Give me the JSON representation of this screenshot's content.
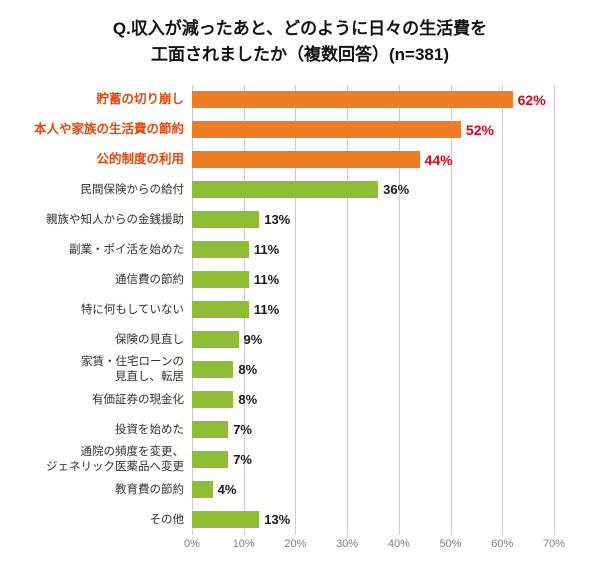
{
  "title": {
    "line1": "Q.収入が減ったあと、どのように日々の生活費を",
    "line2": "工面されましたか（複数回答）(n=381)"
  },
  "colors": {
    "highlight_bar": "#f07d25",
    "highlight_label": "#e8470b",
    "highlight_value": "#e60012",
    "normal_bar": "#8fbe35",
    "normal_label": "#333333",
    "normal_value": "#1a1a1a",
    "grid": "#cccccc",
    "axis_text": "#808080"
  },
  "chart_data": {
    "type": "bar",
    "orientation": "horizontal",
    "title": "Q.収入が減ったあと、どのように日々の生活費を工面されましたか（複数回答）(n=381)",
    "n": 381,
    "categories": [
      "貯蓄の切り崩し",
      "本人や家族の生活費の節約",
      "公的制度の利用",
      "民間保険からの給付",
      "親族や知人からの金銭援助",
      "副業・ポイ活を始めた",
      "通信費の節約",
      "特に何もしていない",
      "保険の見直し",
      "家賃・住宅ローンの\n見直し、転居",
      "有価証券の現金化",
      "投資を始めた",
      "通院の頻度を変更、\nジェネリック医薬品へ変更",
      "教育費の節約",
      "その他"
    ],
    "values": [
      62,
      52,
      44,
      36,
      13,
      11,
      11,
      11,
      9,
      8,
      8,
      7,
      7,
      4,
      13
    ],
    "value_suffix": "%",
    "highlighted_indices": [
      0,
      1,
      2
    ],
    "xlim": [
      0,
      70
    ],
    "x_tick_labels": [
      "0%",
      "10%",
      "20%",
      "30%",
      "40%",
      "50%",
      "60%",
      "70%"
    ],
    "grid": "vertical",
    "legend": "none"
  }
}
